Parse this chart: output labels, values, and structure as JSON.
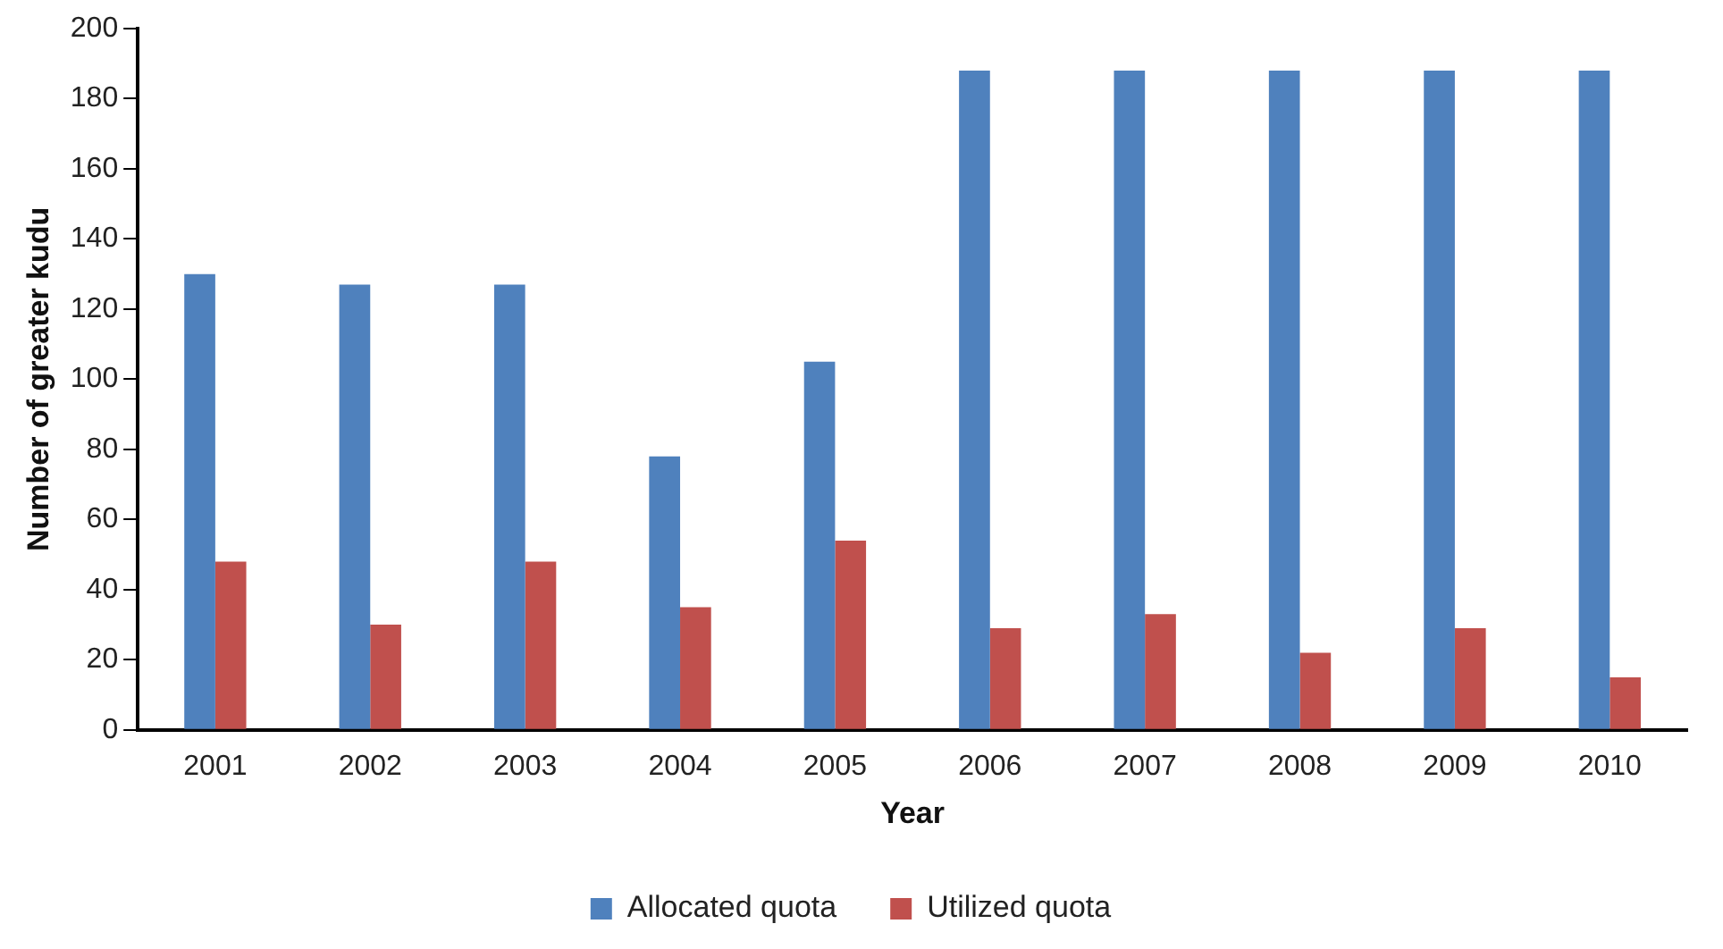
{
  "chart_data": {
    "type": "bar",
    "xlabel": "Year",
    "ylabel": "Number of greater kudu",
    "categories": [
      "2001",
      "2002",
      "2003",
      "2004",
      "2005",
      "2006",
      "2007",
      "2008",
      "2009",
      "2010"
    ],
    "series": [
      {
        "name": "Allocated quota",
        "color": "#4f81bd",
        "values": [
          130,
          127,
          127,
          78,
          105,
          188,
          188,
          188,
          188,
          188
        ]
      },
      {
        "name": "Utilized quota",
        "color": "#c0504d",
        "values": [
          48,
          30,
          48,
          35,
          54,
          29,
          33,
          22,
          29,
          15
        ]
      }
    ],
    "ylim": [
      0,
      200
    ],
    "yticks": [
      0,
      20,
      40,
      60,
      80,
      100,
      120,
      140,
      160,
      180,
      200
    ],
    "grid": false,
    "legend": "bottom"
  }
}
